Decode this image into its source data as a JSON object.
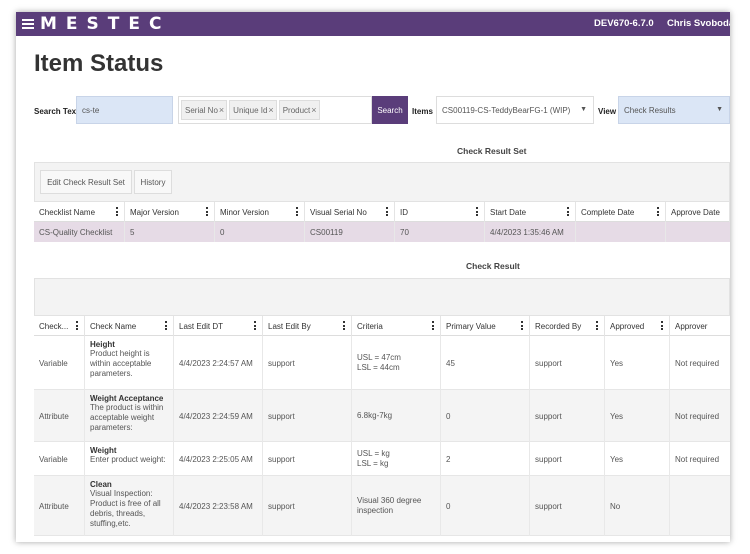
{
  "header": {
    "brand": "MESTEC",
    "environment": "DEV670-6.7.0",
    "user": "Chris Svoboda"
  },
  "page": {
    "title": "Item Status"
  },
  "filters": {
    "search_label": "Search Text",
    "search_value": "cs-te",
    "chips": [
      "Serial No",
      "Unique Id",
      "Product"
    ],
    "search_button": "Search",
    "items_label": "Items",
    "items_value": "CS00119-CS-TeddyBearFG-1 (WIP)",
    "view_label": "View",
    "view_value": "Check Results"
  },
  "check_result_set": {
    "title": "Check Result Set",
    "buttons": {
      "edit": "Edit Check Result Set",
      "history": "History"
    },
    "columns": [
      "Checklist Name",
      "Major Version",
      "Minor Version",
      "Visual Serial No",
      "ID",
      "Start Date",
      "Complete Date",
      "Approve Date"
    ],
    "rows": [
      [
        "CS-Quality Checklist",
        "5",
        "0",
        "CS00119",
        "70",
        "4/4/2023 1:35:46 AM",
        "",
        ""
      ]
    ]
  },
  "check_result": {
    "title": "Check Result",
    "columns": [
      "Check...",
      "Check Name",
      "Last Edit DT",
      "Last Edit By",
      "Criteria",
      "Primary Value",
      "Recorded By",
      "Approved",
      "Approver"
    ],
    "rows": [
      {
        "type": "Variable",
        "name": "Height",
        "description": [
          "Product height is",
          "within acceptable",
          "parameters."
        ],
        "last_edit_dt": "4/4/2023 2:24:57 AM",
        "last_edit_by": "support",
        "criteria": [
          "USL = 47cm",
          "LSL = 44cm"
        ],
        "primary_value": "45",
        "recorded_by": "support",
        "approved": "Yes",
        "approver": "Not required"
      },
      {
        "type": "Attribute",
        "name": "Weight Acceptance",
        "description": [
          "The product is within",
          "acceptable weight",
          "parameters:"
        ],
        "last_edit_dt": "4/4/2023 2:24:59 AM",
        "last_edit_by": "support",
        "criteria": [
          "6.8kg-7kg"
        ],
        "primary_value": "0",
        "recorded_by": "support",
        "approved": "Yes",
        "approver": "Not required"
      },
      {
        "type": "Variable",
        "name": "Weight",
        "description": [
          "Enter product weight:"
        ],
        "last_edit_dt": "4/4/2023 2:25:05 AM",
        "last_edit_by": "support",
        "criteria": [
          "USL = kg",
          "LSL = kg"
        ],
        "primary_value": "2",
        "recorded_by": "support",
        "approved": "Yes",
        "approver": "Not required"
      },
      {
        "type": "Attribute",
        "name": "Clean",
        "description": [
          "Visual Inspection:",
          "Product is free of all",
          "debris, threads,",
          "stuffing,etc."
        ],
        "last_edit_dt": "4/4/2023 2:23:58 AM",
        "last_edit_by": "support",
        "criteria": [
          "Visual 360 degree",
          "inspection"
        ],
        "primary_value": "0",
        "recorded_by": "support",
        "approved": "No",
        "approver": ""
      }
    ]
  },
  "colors": {
    "brand_purple": "#5a3d7a",
    "selected_row": "#e6dbe6",
    "input_blue": "#dbe6f6"
  }
}
